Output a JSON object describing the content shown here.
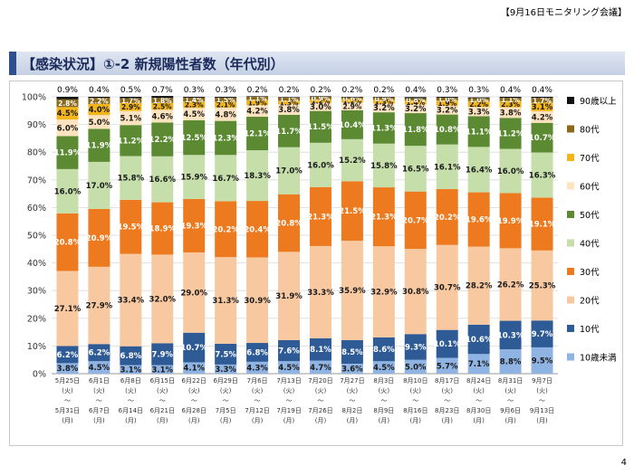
{
  "header": {
    "meeting_label": "【9月16日モニタリング会議】"
  },
  "slide": {
    "title": "【感染状況】①-2 新規陽性者数（年代別）",
    "page_number": "4"
  },
  "colors": {
    "10歳未満": "#8fb4e3",
    "10代": "#2e5b96",
    "20代": "#f8c8a0",
    "30代": "#ee7a1f",
    "40代": "#c5deaa",
    "50代": "#5b8a32",
    "60代": "#fde3bf",
    "70代": "#f3b51b",
    "80代": "#8a6a1a",
    "90歳以上": "#111111"
  },
  "chart_data": {
    "type": "bar",
    "stacked": true,
    "percent": true,
    "categories": [
      [
        "5月25日",
        "(火)",
        "～",
        "5月31日",
        "(月)"
      ],
      [
        "6月1日",
        "(火)",
        "～",
        "6月7日",
        "(月)"
      ],
      [
        "6月8日",
        "(火)",
        "～",
        "6月14日",
        "(月)"
      ],
      [
        "6月15日",
        "(火)",
        "～",
        "6月21日",
        "(月)"
      ],
      [
        "6月22日",
        "(火)",
        "～",
        "6月28日",
        "(月)"
      ],
      [
        "6月29日",
        "(火)",
        "～",
        "7月5日",
        "(月)"
      ],
      [
        "7月6日",
        "(火)",
        "～",
        "7月12日",
        "(月)"
      ],
      [
        "7月13日",
        "(火)",
        "～",
        "7月19日",
        "(月)"
      ],
      [
        "7月20日",
        "(火)",
        "～",
        "7月26日",
        "(月)"
      ],
      [
        "7月27日",
        "(火)",
        "～",
        "8月2日",
        "(月)"
      ],
      [
        "8月3日",
        "(火)",
        "～",
        "8月9日",
        "(月)"
      ],
      [
        "8月10日",
        "(火)",
        "～",
        "8月16日",
        "(月)"
      ],
      [
        "8月17日",
        "(火)",
        "～",
        "8月23日",
        "(月)"
      ],
      [
        "8月24日",
        "(火)",
        "～",
        "8月30日",
        "(月)"
      ],
      [
        "8月31日",
        "(火)",
        "～",
        "9月6日",
        "(月)"
      ],
      [
        "9月7日",
        "(火)",
        "～",
        "9月13日",
        "(月)"
      ]
    ],
    "yticks": [
      "0%",
      "10%",
      "20%",
      "30%",
      "40%",
      "50%",
      "60%",
      "70%",
      "80%",
      "90%",
      "100%"
    ],
    "ylim": [
      0,
      100
    ],
    "legend_position": "right",
    "series": [
      {
        "name": "10歳未満",
        "values": [
          3.8,
          4.5,
          3.1,
          3.1,
          4.1,
          3.3,
          4.3,
          4.5,
          4.7,
          3.6,
          4.5,
          5.0,
          5.7,
          7.1,
          8.8,
          9.5
        ],
        "labels": [
          "3.8%",
          "4.5%",
          "3.1%",
          "3.1%",
          "4.1%",
          "3.3%",
          "4.3%",
          "4.5%",
          "4.7%",
          "3.6%",
          "4.5%",
          "5.0%",
          "5.7%",
          "7.1%",
          "8.8%",
          "9.5%"
        ]
      },
      {
        "name": "10代",
        "values": [
          6.2,
          6.2,
          6.8,
          7.9,
          10.7,
          7.5,
          6.8,
          7.6,
          8.1,
          8.5,
          8.6,
          9.3,
          10.1,
          10.6,
          10.3,
          9.7
        ],
        "labels": [
          "6.2%",
          "6.2%",
          "6.8%",
          "7.9%",
          "10.7%",
          "7.5%",
          "6.8%",
          "7.6%",
          "8.1%",
          "8.5%",
          "8.6%",
          "9.3%",
          "10.1%",
          "10.6%",
          "10.3%",
          "9.7%"
        ]
      },
      {
        "name": "20代",
        "values": [
          27.1,
          27.9,
          33.4,
          32.0,
          29.0,
          31.3,
          30.9,
          31.9,
          33.3,
          35.9,
          32.9,
          30.8,
          30.7,
          28.2,
          26.2,
          25.3
        ],
        "labels": [
          "27.1%",
          "27.9%",
          "33.4%",
          "32.0%",
          "29.0%",
          "31.3%",
          "30.9%",
          "31.9%",
          "33.3%",
          "35.9%",
          "32.9%",
          "30.8%",
          "30.7%",
          "28.2%",
          "26.2%",
          "25.3%"
        ]
      },
      {
        "name": "30代",
        "values": [
          20.8,
          20.9,
          19.5,
          18.9,
          19.3,
          20.2,
          20.4,
          20.8,
          21.3,
          21.5,
          21.3,
          20.7,
          20.2,
          19.6,
          19.9,
          19.1
        ],
        "labels": [
          "20.8%",
          "20.9%",
          "19.5%",
          "18.9%",
          "19.3%",
          "20.2%",
          "20.4%",
          "20.8%",
          "21.3%",
          "21.5%",
          "21.3%",
          "20.7%",
          "20.2%",
          "19.6%",
          "19.9%",
          "19.1%"
        ]
      },
      {
        "name": "40代",
        "values": [
          16.0,
          17.0,
          15.8,
          16.6,
          15.9,
          16.7,
          18.3,
          17.0,
          16.0,
          15.2,
          15.8,
          16.5,
          16.1,
          16.4,
          16.0,
          16.3
        ],
        "labels": [
          "16.0%",
          "17.0%",
          "15.8%",
          "16.6%",
          "15.9%",
          "16.7%",
          "18.3%",
          "17.0%",
          "16.0%",
          "15.2%",
          "15.8%",
          "16.5%",
          "16.1%",
          "16.4%",
          "16.0%",
          "16.3%"
        ]
      },
      {
        "name": "50代",
        "values": [
          11.9,
          11.9,
          11.2,
          12.2,
          12.5,
          12.3,
          12.1,
          11.7,
          11.5,
          10.4,
          11.3,
          11.8,
          10.8,
          11.1,
          11.2,
          10.7
        ],
        "labels": [
          "11.9%",
          "11.9%",
          "11.2%",
          "12.2%",
          "12.5%",
          "12.3%",
          "12.1%",
          "11.7%",
          "11.5%",
          "10.4%",
          "11.3%",
          "11.8%",
          "10.8%",
          "11.1%",
          "11.2%",
          "10.7%"
        ]
      },
      {
        "name": "60代",
        "values": [
          6.0,
          5.0,
          5.1,
          4.6,
          4.5,
          4.8,
          4.2,
          3.8,
          3.0,
          2.9,
          3.2,
          3.2,
          3.2,
          3.3,
          3.8,
          4.2
        ],
        "labels": [
          "6.0%",
          "5.0%",
          "5.1%",
          "4.6%",
          "4.5%",
          "4.8%",
          "4.2%",
          "3.8%",
          "3.0%",
          "2.9%",
          "3.2%",
          "3.2%",
          "3.2%",
          "3.3%",
          "3.8%",
          "4.2%"
        ]
      },
      {
        "name": "70代",
        "values": [
          4.5,
          4.0,
          2.9,
          2.5,
          2.3,
          2.1,
          1.9,
          1.3,
          1.2,
          1.2,
          1.3,
          1.4,
          1.9,
          2.2,
          2.3,
          3.1
        ],
        "labels": [
          "4.5%",
          "4.0%",
          "2.9%",
          "2.5%",
          "2.3%",
          "2.1%",
          "1.9%",
          "1.3%",
          "1.2%",
          "1.2%",
          "1.3%",
          "1.4%",
          "1.9%",
          "2.2%",
          "2.3%",
          "3.1%"
        ]
      },
      {
        "name": "80代",
        "values": [
          2.8,
          2.2,
          1.7,
          1.8,
          1.4,
          1.5,
          1.1,
          1.1,
          0.9,
          0.6,
          0.9,
          0.8,
          1.0,
          1.0,
          1.1,
          1.7
        ],
        "labels": [
          "2.8%",
          "2.2%",
          "1.7%",
          "1.8%",
          "1.4%",
          "1.5%",
          "1.1%",
          "1.1%",
          "0.9%",
          "0.6%",
          "0.9%",
          "0.8%",
          "1.0%",
          "1.0%",
          "1.1%",
          "1.7%"
        ]
      },
      {
        "name": "90歳以上",
        "values": [
          0.9,
          0.4,
          0.5,
          0.7,
          0.3,
          0.3,
          0.2,
          0.2,
          0.2,
          0.2,
          0.2,
          0.4,
          0.3,
          0.3,
          0.4,
          0.4
        ],
        "labels": [
          "0.9%",
          "0.4%",
          "0.5%",
          "0.7%",
          "0.3%",
          "0.3%",
          "0.2%",
          "0.2%",
          "0.2%",
          "0.2%",
          "0.2%",
          "0.4%",
          "0.3%",
          "0.3%",
          "0.4%",
          "0.4%"
        ]
      }
    ]
  }
}
